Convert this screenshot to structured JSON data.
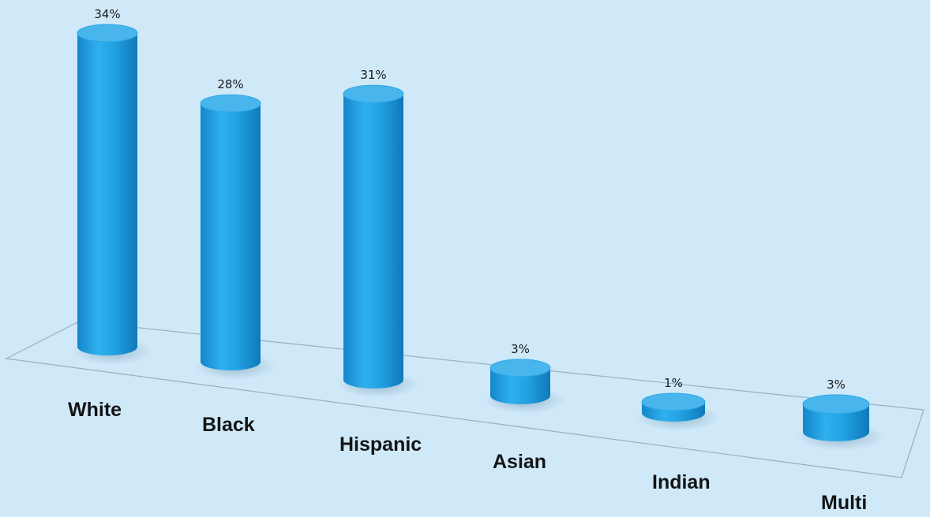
{
  "chart_data": {
    "type": "bar",
    "style": "3d-cylinder",
    "categories": [
      "White",
      "Black",
      "Hispanic",
      "Asian",
      "Indian",
      "Multi"
    ],
    "values": [
      34,
      28,
      31,
      3,
      1,
      3
    ],
    "value_labels": [
      "34%",
      "28%",
      "31%",
      "3%",
      "1%",
      "3%"
    ],
    "unit": "%",
    "ylim": [
      0,
      34
    ],
    "grid": false,
    "legend": "none",
    "colors": {
      "background": "#cfe9f9",
      "bar": "#1f9fe0",
      "bar_light": "#42b8f2",
      "bar_dark": "#0f7fbf",
      "bar_top": "#48b6ec",
      "floor_line": "#9ab0c0",
      "text": "#141414"
    }
  }
}
